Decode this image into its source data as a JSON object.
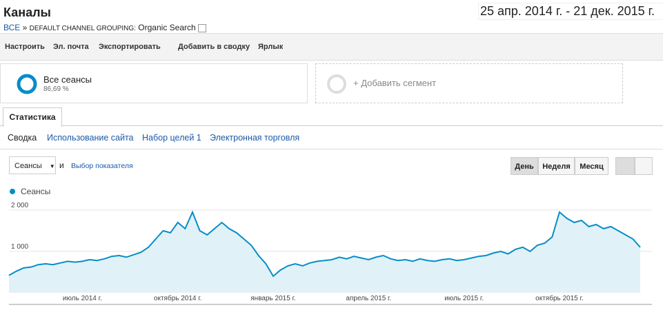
{
  "header": {
    "title": "Каналы",
    "date_range": "25 апр. 2014 г. - 21 дек. 2015 г.",
    "breadcrumb": [
      "ВСЕ",
      "»",
      "DEFAULT CHANNEL GROUPING:",
      "Organic Search"
    ]
  },
  "toolbar": [
    "Настроить",
    "Эл. почта",
    "Экспортировать",
    "Добавить в сводку",
    "Ярлык"
  ],
  "segments": {
    "name": "Все сеансы",
    "share": "86,69 %",
    "add": "+ Добавить сегмент"
  },
  "tab": "Статистика",
  "subtabs": [
    "Сводка",
    "Использование сайта",
    "Набор целей 1",
    "Электронная торговля"
  ],
  "controls": {
    "metric": "Сеансы",
    "and": "и",
    "picker": "Выбор показателя",
    "periods": [
      "День",
      "Неделя",
      "Месяц"
    ]
  },
  "chart_data": {
    "type": "line",
    "categories": [
      null,
      null,
      null,
      null,
      null,
      null,
      null,
      null,
      null,
      null,
      "июль 2014 г.",
      null,
      null,
      null,
      null,
      null,
      null,
      null,
      null,
      null,
      null,
      null,
      null,
      "октябрь 2014 г.",
      null,
      null,
      null,
      null,
      null,
      null,
      null,
      null,
      null,
      null,
      null,
      null,
      "январь 2015 г.",
      null,
      null,
      null,
      null,
      null,
      null,
      null,
      null,
      null,
      null,
      null,
      null,
      "апрель 2015 г.",
      null,
      null,
      null,
      null,
      null,
      null,
      null,
      null,
      null,
      null,
      null,
      null,
      "июль 2015 г.",
      null,
      null,
      null,
      null,
      null,
      null,
      null,
      null,
      null,
      null,
      null,
      null,
      "октябрь 2015 г.",
      null,
      null,
      null,
      null,
      null,
      null,
      null,
      null,
      null,
      null,
      null
    ],
    "series": [
      {
        "name": "Сеансы",
        "color": "#058dc7",
        "values": [
          420,
          520,
          600,
          620,
          680,
          700,
          680,
          720,
          760,
          740,
          760,
          800,
          780,
          820,
          880,
          900,
          860,
          920,
          980,
          1100,
          1300,
          1500,
          1450,
          1700,
          1550,
          1950,
          1500,
          1400,
          1550,
          1700,
          1550,
          1450,
          1300,
          1150,
          900,
          700,
          400,
          550,
          650,
          700,
          650,
          720,
          760,
          780,
          800,
          860,
          820,
          880,
          840,
          800,
          860,
          900,
          820,
          780,
          800,
          760,
          820,
          780,
          760,
          800,
          820,
          780,
          800,
          840,
          880,
          900,
          960,
          1000,
          940,
          1050,
          1100,
          1000,
          1150,
          1200,
          1350,
          1950,
          1800,
          1700,
          1750,
          1600,
          1650,
          1550,
          1600,
          1500,
          1400,
          1300,
          1100
        ]
      }
    ],
    "ylim": [
      0,
      2150
    ],
    "yticks": [
      {
        "value": 1000,
        "label": "1 000"
      },
      {
        "value": 2000,
        "label": "2 000"
      }
    ],
    "grid": true
  }
}
